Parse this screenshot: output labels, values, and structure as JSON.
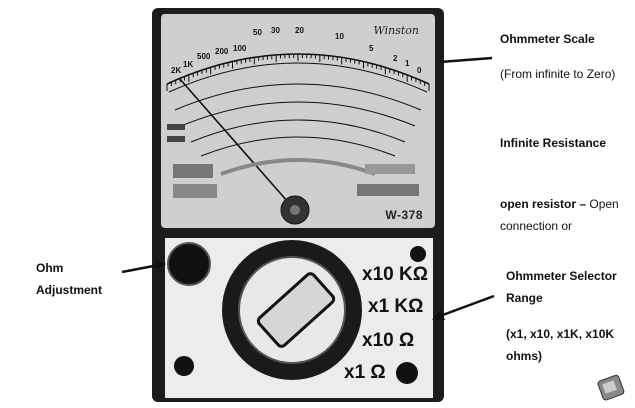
{
  "meter": {
    "brand": "Winston",
    "model": "W-378",
    "scale_numbers": [
      "2K",
      "1K",
      "500",
      "200",
      "100",
      "50",
      "30",
      "20",
      "10",
      "5",
      "2",
      "1",
      "0"
    ],
    "ranges": [
      "x10 KΩ",
      "x1 KΩ",
      "x10 Ω",
      "x1 Ω"
    ]
  },
  "annotations": {
    "ohmmeter_scale_title": "Ohmmeter Scale",
    "ohmmeter_scale_sub": "(From infinite to Zero)",
    "infinite_title": "Infinite Resistance",
    "infinite_line1_bold": "open resistor –",
    "infinite_line1_rest": " Open",
    "infinite_line2": "connection or",
    "ohm_adj_line1": "Ohm",
    "ohm_adj_line2": "Adjustment",
    "selector_title_line1": "Ohmmeter Selector",
    "selector_title_line2": "Range",
    "selector_sub_line1": "(x1, x10, x1K, x10K",
    "selector_sub_line2": "ohms)"
  },
  "colors": {
    "body": "#1c1c1c",
    "face": "#cfcfcf",
    "panel": "#ececec"
  }
}
